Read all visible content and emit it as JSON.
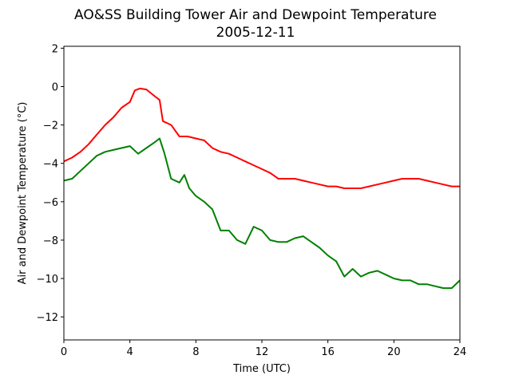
{
  "chart_data": {
    "type": "line",
    "title": "AO&SS Building Tower Air and Dewpoint Temperature",
    "subtitle": "2005-12-11",
    "xlabel": "Time (UTC)",
    "ylabel": "Air and Dewpoint Temperature (°C)",
    "xlim": [
      0,
      24
    ],
    "ylim": [
      -13.2,
      2.1
    ],
    "xticks": [
      0,
      4,
      8,
      12,
      16,
      20,
      24
    ],
    "yticks": [
      2,
      0,
      -2,
      -4,
      -6,
      -8,
      -10,
      -12
    ],
    "grid": false,
    "series": [
      {
        "color": "#ff0000",
        "x": [
          0,
          0.5,
          1,
          1.5,
          2,
          2.5,
          3,
          3.5,
          4,
          4.3,
          4.6,
          5,
          5.5,
          5.8,
          6,
          6.5,
          7,
          7.5,
          8,
          8.5,
          9,
          9.5,
          10,
          10.5,
          11,
          11.5,
          12,
          12.5,
          13,
          13.5,
          14,
          14.5,
          15,
          15.5,
          16,
          16.5,
          17,
          17.5,
          18,
          18.5,
          19,
          19.5,
          20,
          20.5,
          21,
          21.5,
          22,
          22.5,
          23,
          23.5,
          24
        ],
        "y": [
          -3.9,
          -3.7,
          -3.4,
          -3.0,
          -2.5,
          -2.0,
          -1.6,
          -1.1,
          -0.8,
          -0.2,
          -0.1,
          -0.15,
          -0.5,
          -0.7,
          -1.8,
          -2.0,
          -2.6,
          -2.6,
          -2.7,
          -2.8,
          -3.2,
          -3.4,
          -3.5,
          -3.7,
          -3.9,
          -4.1,
          -4.3,
          -4.5,
          -4.8,
          -4.8,
          -4.8,
          -4.9,
          -5.0,
          -5.1,
          -5.2,
          -5.2,
          -5.3,
          -5.3,
          -5.3,
          -5.2,
          -5.1,
          -5.0,
          -4.9,
          -4.8,
          -4.8,
          -4.8,
          -4.9,
          -5.0,
          -5.1,
          -5.2,
          -5.2
        ]
      },
      {
        "color": "#008000",
        "x": [
          0,
          0.5,
          1,
          1.5,
          2,
          2.5,
          3,
          3.5,
          4,
          4.5,
          5,
          5.5,
          5.8,
          6.1,
          6.5,
          7,
          7.3,
          7.6,
          8,
          8.5,
          9,
          9.5,
          10,
          10.5,
          11,
          11.5,
          12,
          12.5,
          13,
          13.5,
          14,
          14.5,
          15,
          15.5,
          16,
          16.5,
          17,
          17.5,
          18,
          18.5,
          19,
          19.5,
          20,
          20.5,
          21,
          21.5,
          22,
          22.5,
          23,
          23.5,
          24
        ],
        "y": [
          -4.9,
          -4.8,
          -4.4,
          -4.0,
          -3.6,
          -3.4,
          -3.3,
          -3.2,
          -3.1,
          -3.5,
          -3.2,
          -2.9,
          -2.7,
          -3.5,
          -4.8,
          -5.0,
          -4.6,
          -5.3,
          -5.7,
          -6.0,
          -6.4,
          -7.5,
          -7.5,
          -8.0,
          -8.2,
          -7.3,
          -7.5,
          -8.0,
          -8.1,
          -8.1,
          -7.9,
          -7.8,
          -8.1,
          -8.4,
          -8.8,
          -9.1,
          -9.9,
          -9.5,
          -9.9,
          -9.7,
          -9.6,
          -9.8,
          -10.0,
          -10.1,
          -10.1,
          -10.3,
          -10.3,
          -10.4,
          -10.5,
          -10.5,
          -10.1
        ]
      }
    ]
  }
}
